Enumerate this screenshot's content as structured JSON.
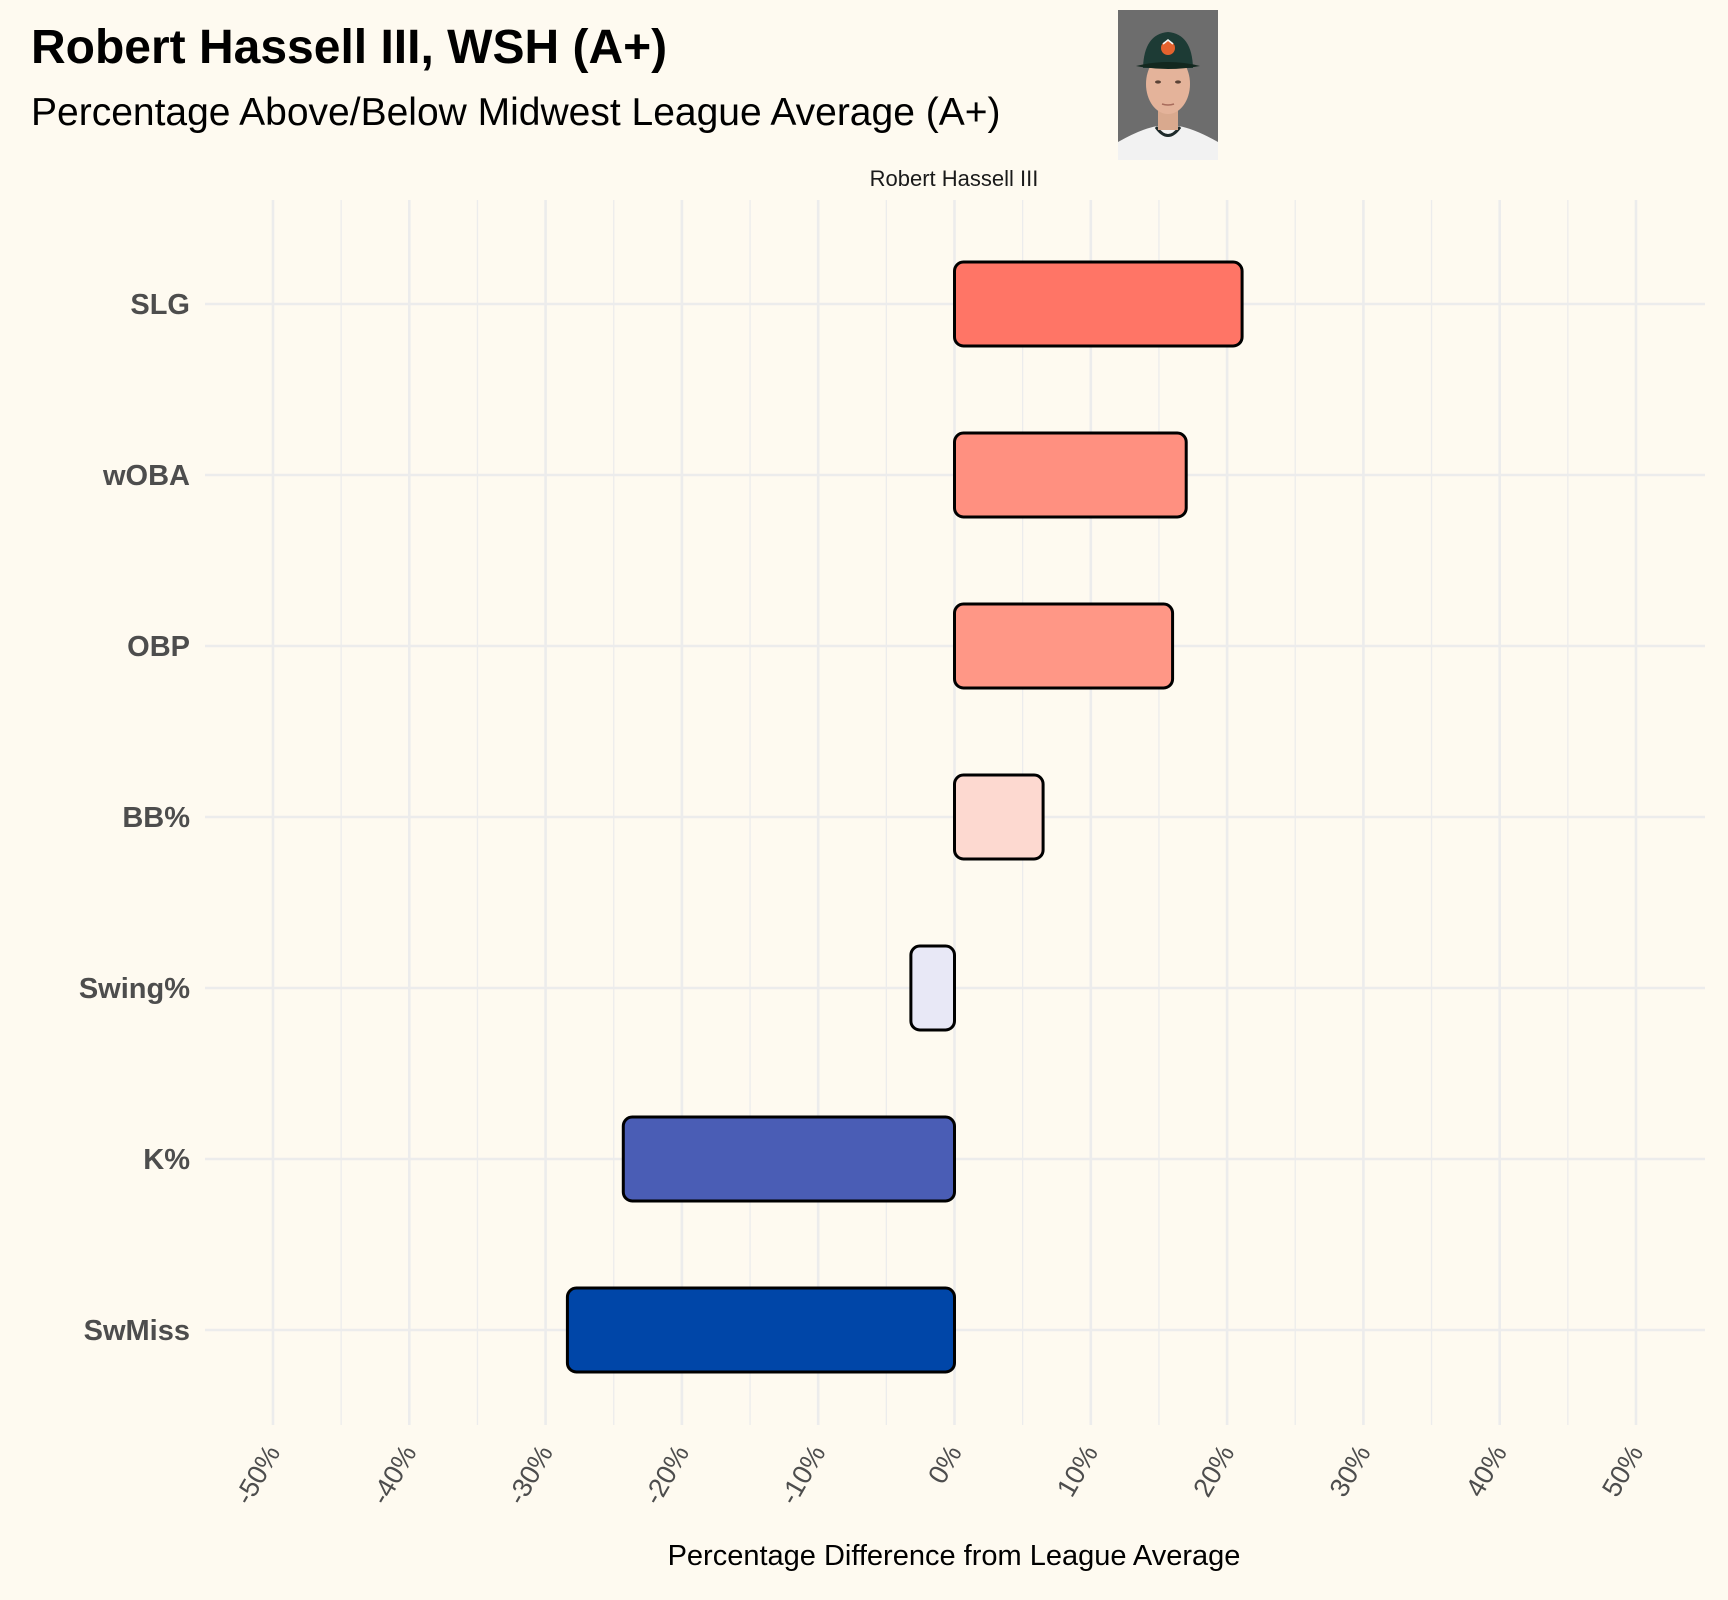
{
  "chart_data": {
    "type": "bar",
    "orientation": "horizontal",
    "title": "Robert Hassell III, WSH (A+)",
    "subtitle": "Percentage Above/Below Midwest League Average (A+)",
    "facet_label": "Robert Hassell III",
    "xlabel": "Percentage Difference from League Average",
    "ylabel": "",
    "xlim": [
      -50,
      50
    ],
    "x_ticks": [
      "-50%",
      "-40%",
      "-30%",
      "-20%",
      "-10%",
      "0%",
      "10%",
      "20%",
      "30%",
      "40%",
      "50%"
    ],
    "categories": [
      "SLG",
      "wOBA",
      "OBP",
      "BB%",
      "Swing%",
      "K%",
      "SwMiss"
    ],
    "values": [
      21.1,
      17.0,
      16.0,
      6.5,
      -3.2,
      -24.3,
      -28.4
    ],
    "colors": [
      "#ff7566",
      "#ff9080",
      "#ff9786",
      "#fdd9d0",
      "#e8e8f6",
      "#4a5db5",
      "#0046a8"
    ],
    "grid": true,
    "legend": "none"
  },
  "headshot": {
    "icon": "player-headshot-photo"
  }
}
